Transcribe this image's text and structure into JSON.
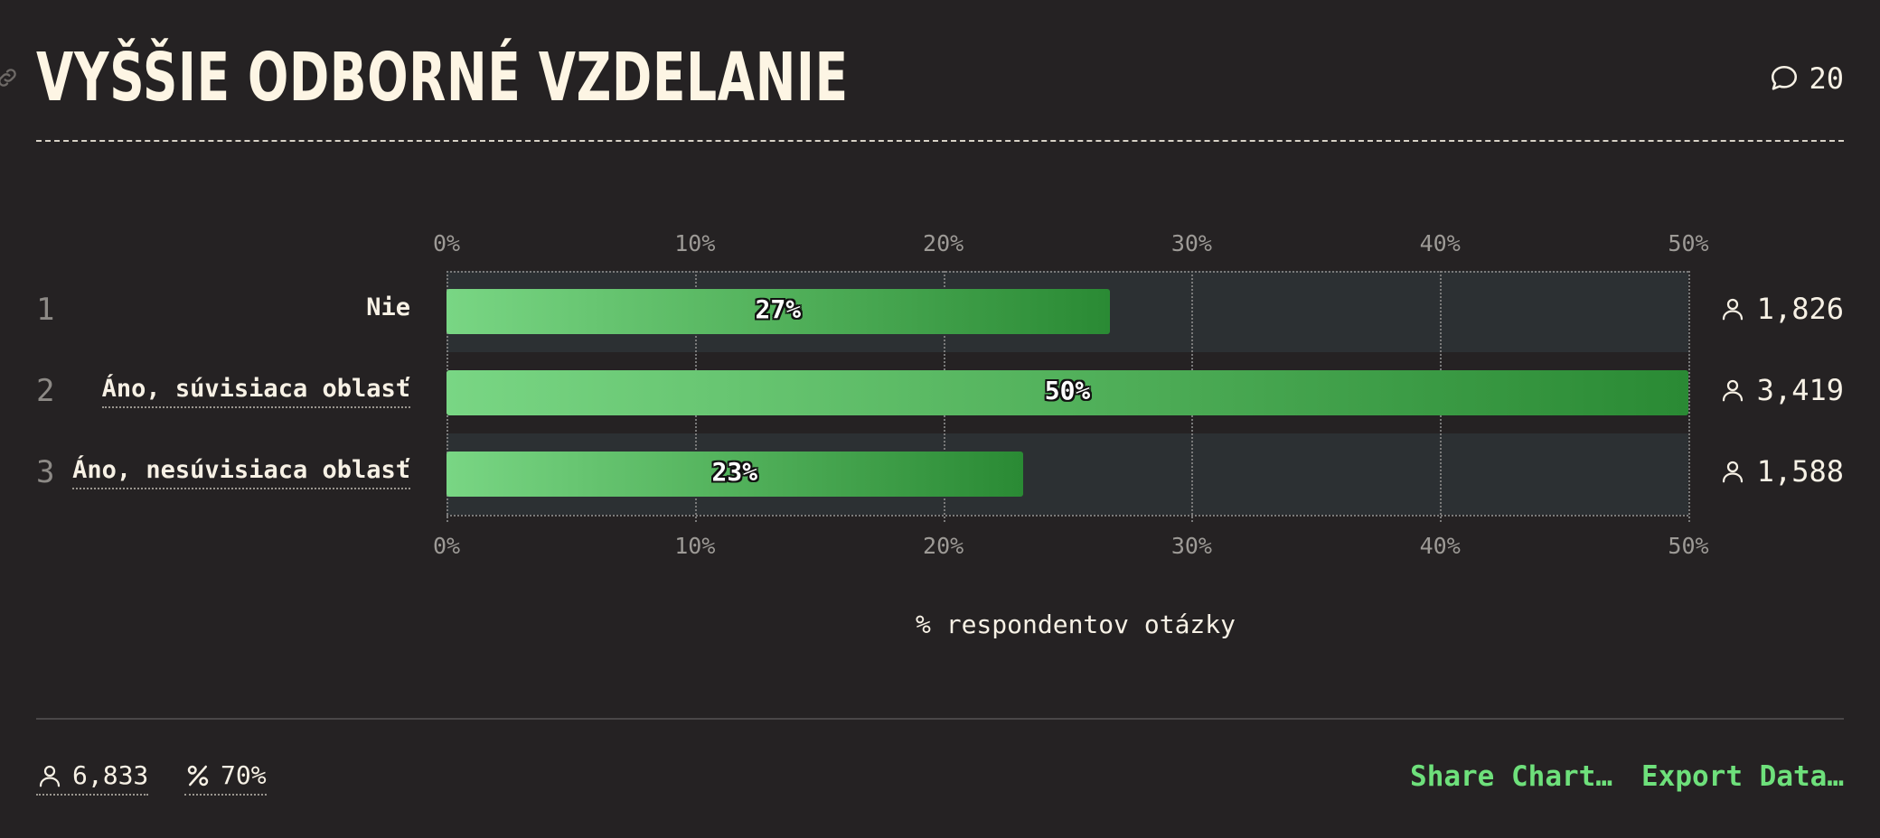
{
  "header": {
    "title": "VYŠŠIE ODBORNÉ VZDELANIE",
    "comment_icon": "speech-bubble-icon",
    "comment_count": "20"
  },
  "chart_data": {
    "type": "bar",
    "orientation": "horizontal",
    "title": "VYŠŠIE ODBORNÉ VZDELANIE",
    "categories": [
      "Nie",
      "Áno, súvisiaca oblasť",
      "Áno, nesúvisiaca oblasť"
    ],
    "ranks": [
      "1",
      "2",
      "3"
    ],
    "values": [
      26.7,
      50,
      23.2
    ],
    "value_labels": [
      "27%",
      "50%",
      "23%"
    ],
    "counts": [
      "1,826",
      "3,419",
      "1,588"
    ],
    "xlim": [
      0,
      50
    ],
    "x_ticks": [
      "0%",
      "10%",
      "20%",
      "30%",
      "40%",
      "50%"
    ],
    "xlabel": "% respondentov otázky",
    "ylabel": "",
    "grid": true
  },
  "footer": {
    "respondents": "6,833",
    "percent": "70%",
    "share_label": "Share Chart…",
    "export_label": "Export Data…"
  },
  "colors": {
    "background": "#252223",
    "bar_start": "#79d684",
    "bar_end": "#2a8a34",
    "accent": "#6ee07b"
  }
}
